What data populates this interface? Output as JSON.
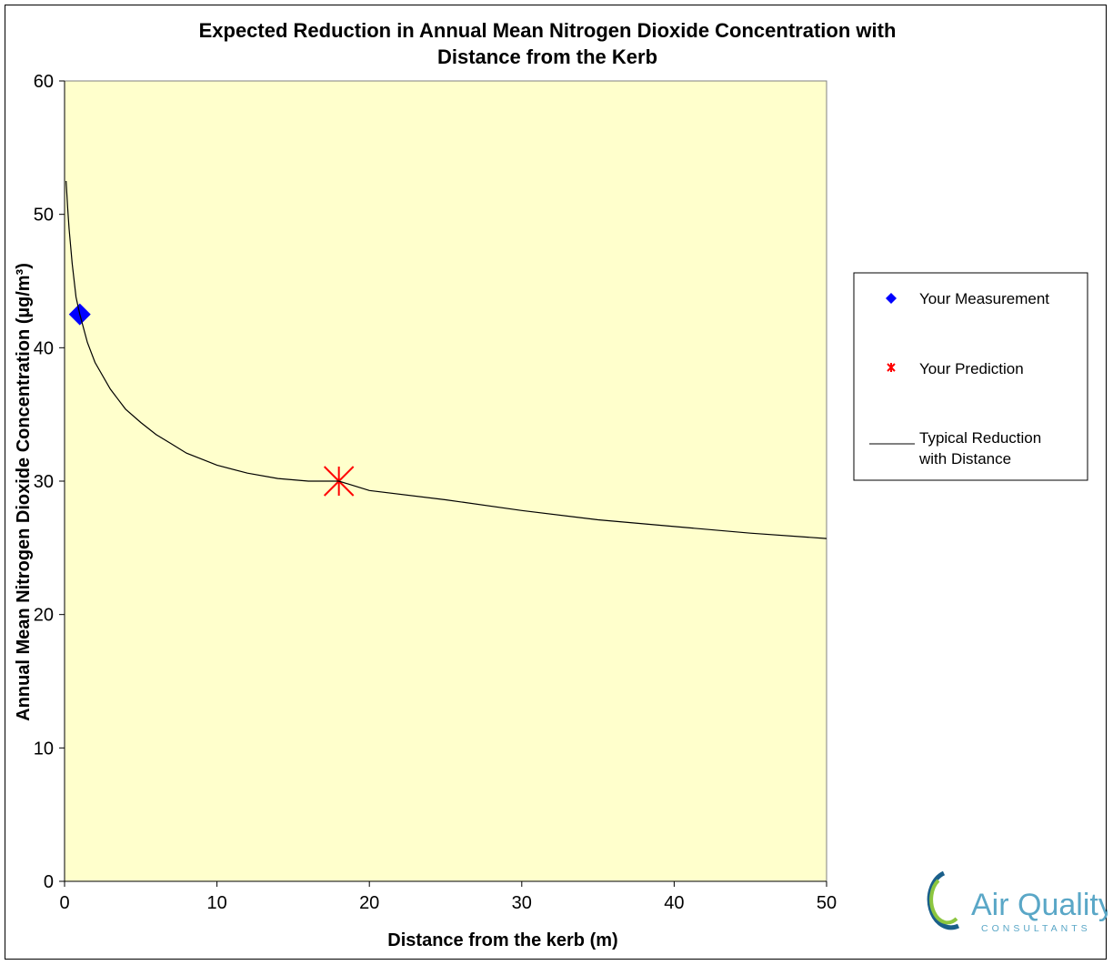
{
  "chart_data": {
    "type": "scatter",
    "title_line1": "Expected Reduction in Annual Mean Nitrogen Dioxide Concentration with",
    "title_line2": "Distance from the Kerb",
    "xlabel": "Distance from the kerb (m)",
    "ylabel": "Annual Mean Nitrogen Dioxide Concentration (µg/m³)",
    "xlim": [
      0,
      50
    ],
    "ylim": [
      0,
      60
    ],
    "x_ticks": [
      "0",
      "10",
      "20",
      "30",
      "40",
      "50"
    ],
    "y_ticks": [
      "0",
      "10",
      "20",
      "30",
      "40",
      "50",
      "60"
    ],
    "plot_background": "#ffffcc",
    "grid": false,
    "legend_position": "right",
    "series": [
      {
        "name": "Your Measurement",
        "kind": "marker",
        "marker": "diamond",
        "color": "#0000ff",
        "points": [
          [
            1,
            42.5
          ]
        ]
      },
      {
        "name": "Your Prediction",
        "kind": "marker",
        "marker": "asterisk",
        "color": "#ff0000",
        "points": [
          [
            18,
            30
          ]
        ]
      },
      {
        "name": "Typical Reduction with Distance",
        "legend_lines": [
          "Typical Reduction",
          "with Distance"
        ],
        "kind": "line",
        "color": "#000000",
        "points": [
          [
            0.1,
            52.5
          ],
          [
            0.2,
            50.5
          ],
          [
            0.3,
            48.9
          ],
          [
            0.5,
            46.3
          ],
          [
            0.75,
            43.8
          ],
          [
            1,
            42.5
          ],
          [
            1.5,
            40.4
          ],
          [
            2,
            38.9
          ],
          [
            3,
            36.9
          ],
          [
            4,
            35.4
          ],
          [
            5,
            34.4
          ],
          [
            6,
            33.5
          ],
          [
            7,
            32.8
          ],
          [
            8,
            32.1
          ],
          [
            10,
            31.2
          ],
          [
            12,
            30.6
          ],
          [
            14,
            30.2
          ],
          [
            16,
            30.0
          ],
          [
            18,
            30.0
          ],
          [
            20,
            29.3
          ],
          [
            25,
            28.6
          ],
          [
            30,
            27.8
          ],
          [
            35,
            27.1
          ],
          [
            40,
            26.6
          ],
          [
            45,
            26.1
          ],
          [
            50,
            25.7
          ]
        ]
      }
    ]
  },
  "logo": {
    "name_text": "Air Quality",
    "sub_text": "CONSULTANTS"
  }
}
